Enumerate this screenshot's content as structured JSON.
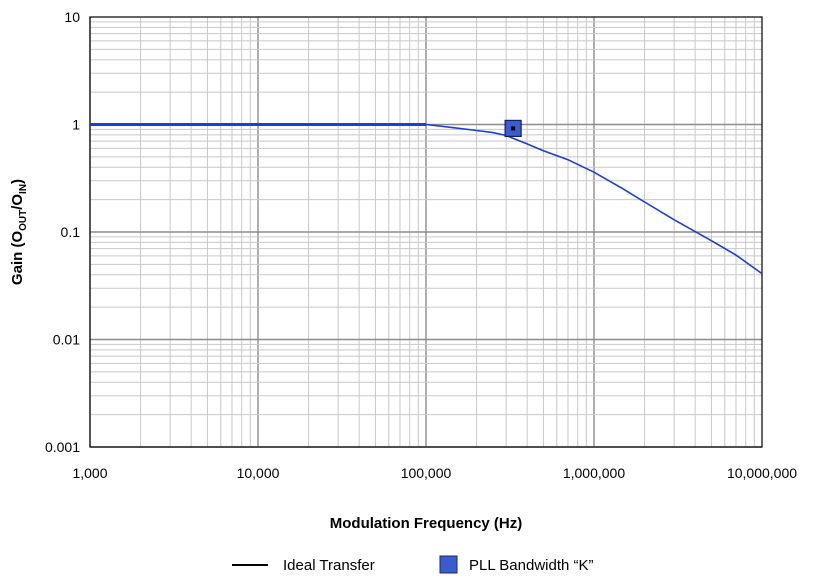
{
  "chart_data": {
    "type": "line",
    "xlabel": "Modulation Frequency (Hz)",
    "ylabel_parts": {
      "prefix": "Gain (O",
      "sub1": "OUT",
      "mid": "/O",
      "sub2": "IN",
      "suffix": ")"
    },
    "x_scale": "log",
    "y_scale": "log",
    "xlim": [
      1000,
      10000000
    ],
    "ylim": [
      0.001,
      10
    ],
    "grid": true,
    "x_ticks": [
      {
        "value": 1000,
        "label": "1,000"
      },
      {
        "value": 10000,
        "label": "10,000"
      },
      {
        "value": 100000,
        "label": "100,000"
      },
      {
        "value": 1000000,
        "label": "1,000,000"
      },
      {
        "value": 10000000,
        "label": "10,000,000"
      }
    ],
    "y_ticks": [
      {
        "value": 10,
        "label": "10"
      },
      {
        "value": 1,
        "label": "1"
      },
      {
        "value": 0.1,
        "label": "0.1"
      },
      {
        "value": 0.01,
        "label": "0.01"
      },
      {
        "value": 0.001,
        "label": "0.001"
      }
    ],
    "series": [
      {
        "name": "Ideal Transfer",
        "color": "#1a3fd6",
        "x": [
          1000,
          3000,
          10000,
          30000,
          100000,
          150000,
          200000,
          250000,
          300000,
          400000,
          500000,
          700000,
          1000000,
          1500000,
          2000000,
          3000000,
          5000000,
          7000000,
          10000000
        ],
        "y": [
          1.0,
          1.0,
          1.0,
          1.0,
          1.0,
          0.93,
          0.88,
          0.84,
          0.79,
          0.66,
          0.57,
          0.47,
          0.36,
          0.25,
          0.19,
          0.13,
          0.083,
          0.061,
          0.041
        ]
      }
    ],
    "markers": [
      {
        "name": "PLL Bandwidth “K”",
        "x": 330000,
        "y": 0.92,
        "color": "#3a5ccc"
      }
    ],
    "legend": {
      "position": "bottom-center",
      "items": [
        {
          "label": "Ideal Transfer",
          "kind": "line",
          "color": "#000000"
        },
        {
          "label": "PLL Bandwidth “K”",
          "kind": "square",
          "color": "#3a5ccc"
        }
      ]
    }
  }
}
